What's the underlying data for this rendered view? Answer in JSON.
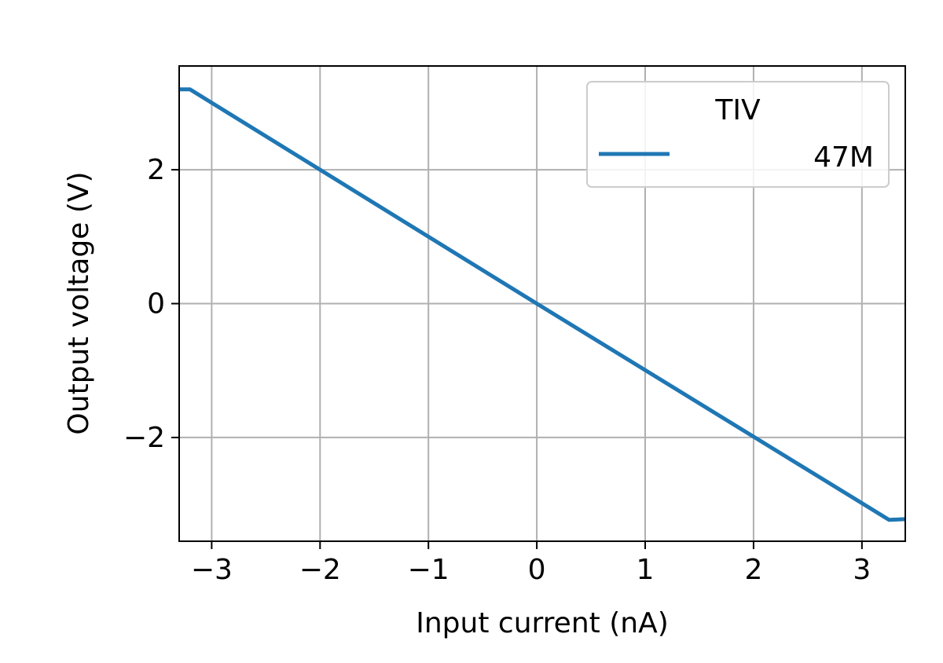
{
  "chart_data": {
    "type": "line",
    "title": "",
    "xlabel": "Input current (nA)",
    "ylabel": "Output voltage (V)",
    "xlim": [
      -3.3,
      3.4
    ],
    "ylim": [
      -3.55,
      3.55
    ],
    "xticks": [
      -3,
      -2,
      -1,
      0,
      1,
      2,
      3
    ],
    "xtick_labels": [
      "−3",
      "−2",
      "−1",
      "0",
      "1",
      "2",
      "3"
    ],
    "yticks": [
      -2,
      0,
      2
    ],
    "ytick_labels": [
      "−2",
      "0",
      "2"
    ],
    "grid": true,
    "legend": {
      "title": "TIV",
      "placement": "top-right",
      "entries": [
        "47M"
      ]
    },
    "series": [
      {
        "name": "47M",
        "color": "#1f77b4",
        "x": [
          -3.3,
          -3.2,
          0,
          3.25,
          3.4
        ],
        "y": [
          3.2,
          3.2,
          0,
          -3.23,
          -3.22
        ]
      }
    ]
  }
}
